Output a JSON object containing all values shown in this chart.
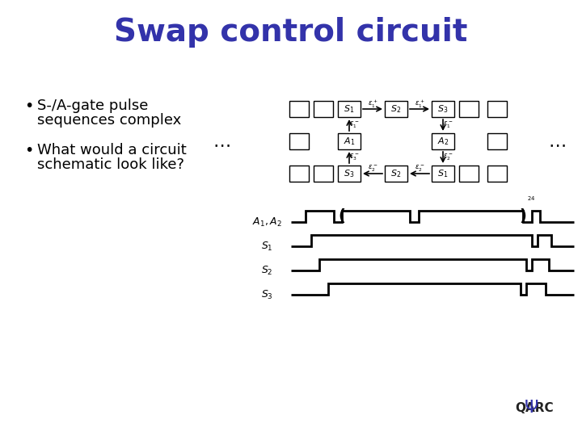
{
  "title": "Swap control circuit",
  "title_color": "#3333aa",
  "title_fontsize": 28,
  "bullet1_line1": "S-/A-gate pulse",
  "bullet1_line2": "sequences complex",
  "bullet2_line1": "What would a circuit",
  "bullet2_line2": "schematic look like?",
  "bg_color": "#ffffff",
  "text_color": "#000000",
  "box_color": "#ffffff",
  "box_edge": "#000000",
  "arrow_color": "#000000",
  "pulse_color": "#000000"
}
